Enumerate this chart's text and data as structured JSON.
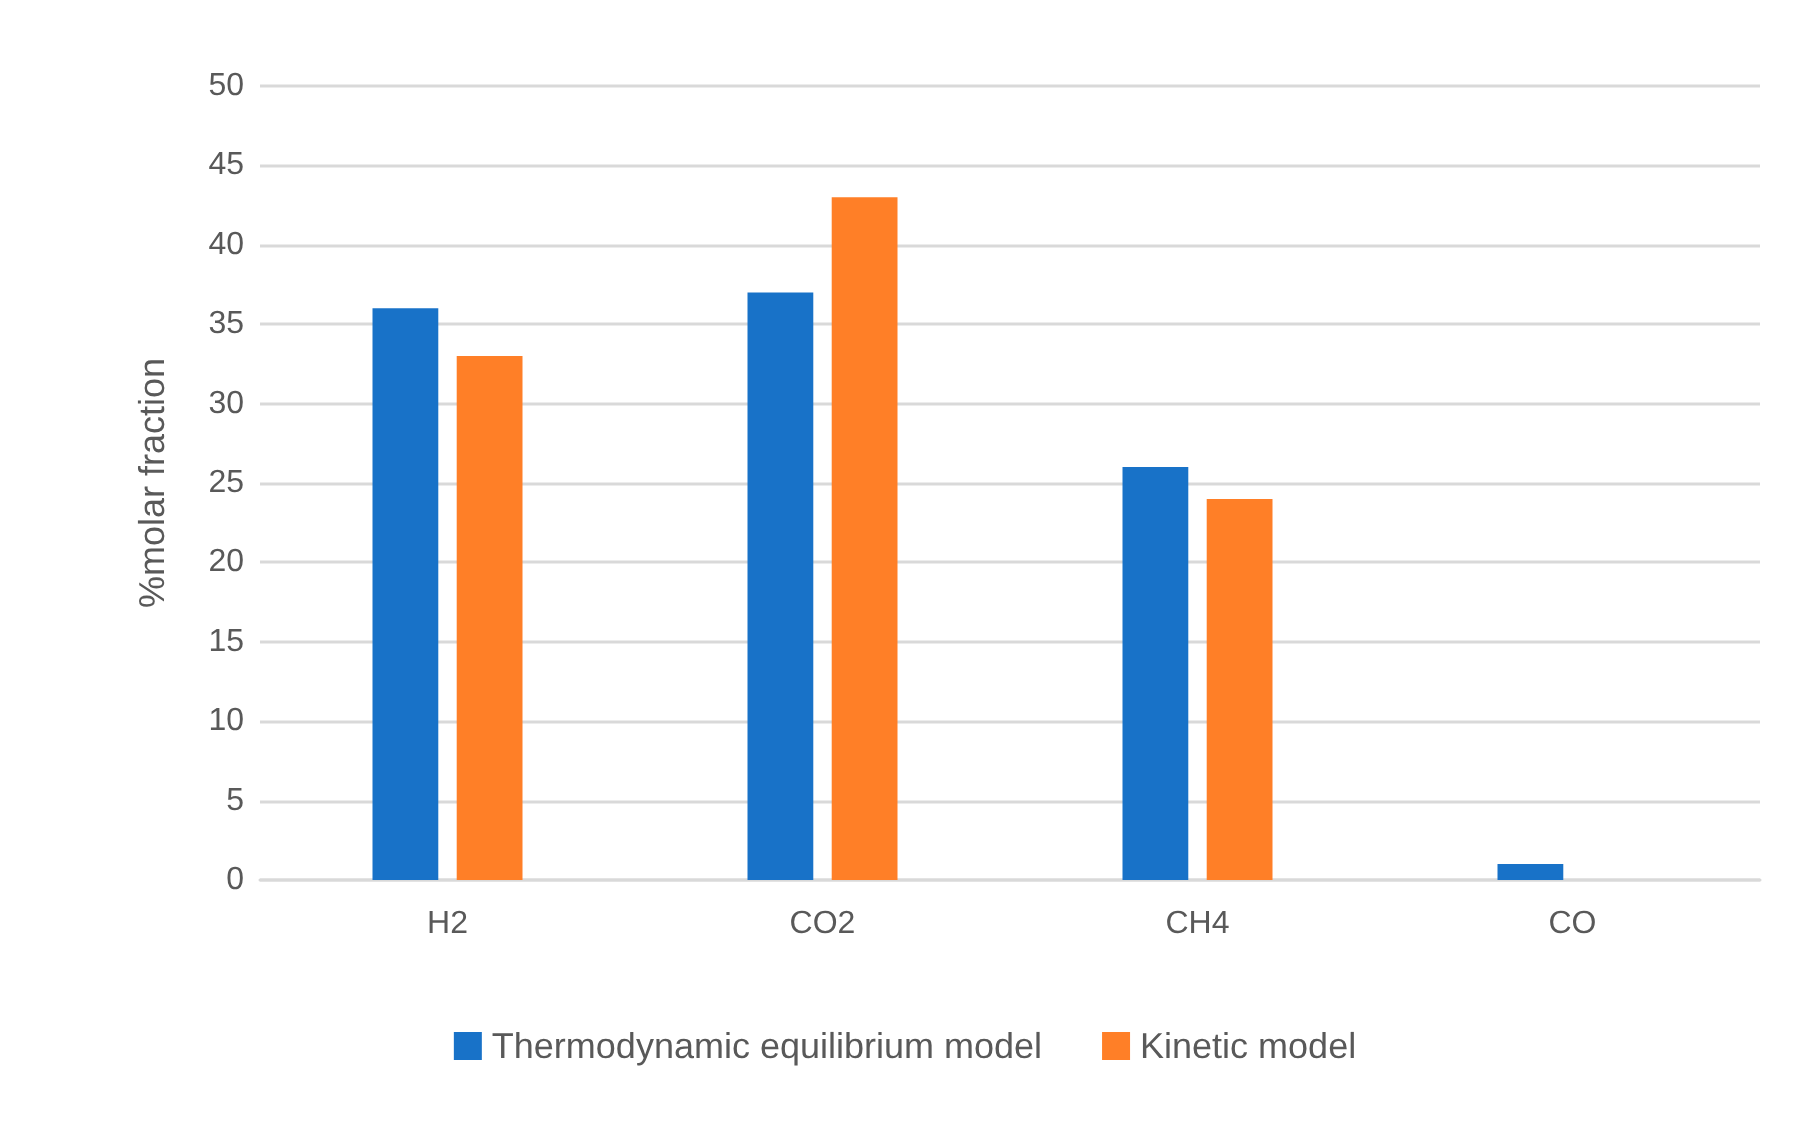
{
  "chart_data": {
    "type": "bar",
    "ylabel": "%molar fraction",
    "categories": [
      "H2",
      "CO2",
      "CH4",
      "CO"
    ],
    "series": [
      {
        "name": "Thermodynamic equilibrium model",
        "color": "#1872c8",
        "values": [
          36,
          37,
          26,
          1
        ]
      },
      {
        "name": "Kinetic model",
        "color": "#ff7f27",
        "values": [
          33,
          43,
          24,
          0
        ]
      }
    ],
    "ylim": [
      0,
      50
    ],
    "yticks": [
      0,
      5,
      10,
      15,
      20,
      25,
      30,
      35,
      40,
      45,
      50
    ],
    "grid": "y",
    "legend": "bottom"
  }
}
